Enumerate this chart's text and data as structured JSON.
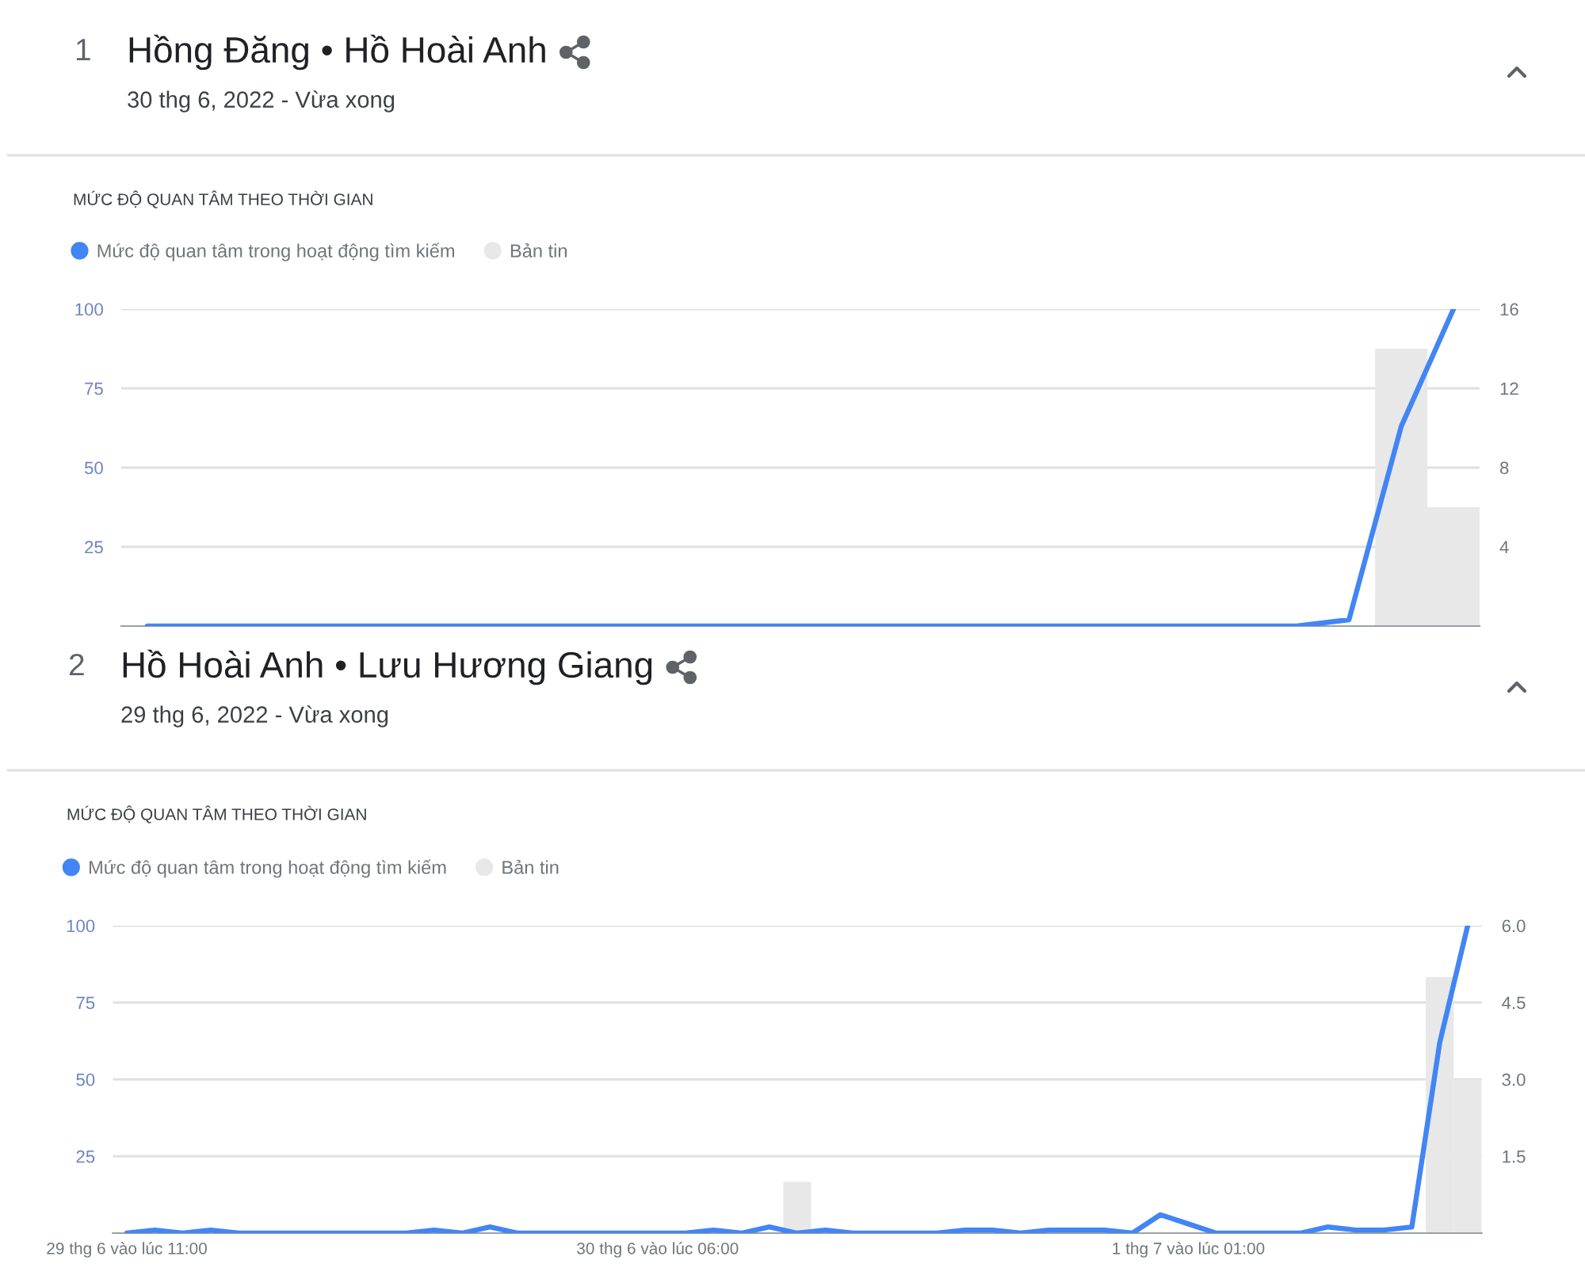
{
  "chart_data": [
    {
      "type": "line",
      "title": "Hồng Đăng • Hồ Hoài Anh",
      "subtitle": "30 thg 6, 2022 - Vừa xong",
      "annotations": [
        "1",
        "MỨC ĐỘ QUAN TÂM THEO THỜI GIAN"
      ],
      "categories": [
        null,
        null,
        null,
        null,
        null,
        null,
        null,
        null,
        null,
        null,
        null,
        null,
        null,
        null,
        null,
        null,
        null,
        null,
        null,
        null,
        null,
        null,
        null,
        null,
        null,
        null
      ],
      "series": [
        {
          "name": "Mức độ quan tâm trong hoạt động tìm kiếm",
          "color": "#4285f4",
          "values": [
            0,
            0,
            0,
            0,
            0,
            0,
            0,
            0,
            0,
            0,
            0,
            0,
            0,
            0,
            0,
            0,
            0,
            0,
            0,
            0,
            0,
            0,
            0,
            2,
            63,
            100
          ]
        },
        {
          "name": "Bản tin",
          "type": "bar",
          "axis": "y2",
          "color": "#e8e8e8",
          "values": [
            null,
            null,
            null,
            null,
            null,
            null,
            null,
            null,
            null,
            null,
            null,
            null,
            null,
            null,
            null,
            null,
            null,
            null,
            null,
            null,
            null,
            null,
            null,
            null,
            14,
            6
          ]
        }
      ],
      "ylim": [
        0,
        100
      ],
      "yticks": [
        25,
        50,
        75,
        100
      ],
      "y2lim": [
        0,
        16
      ],
      "y2ticks": [
        4,
        8,
        12,
        16
      ],
      "grid": "y",
      "legend": "top left"
    },
    {
      "type": "line",
      "title": "Hồ Hoài Anh • Lưu Hương Giang",
      "subtitle": "29 thg 6, 2022 - Vừa xong",
      "annotations": [
        "2",
        "MỨC ĐỘ QUAN TÂM THEO THỜI GIAN"
      ],
      "categories": [
        "29 thg 6 vào lúc 11:00",
        null,
        null,
        null,
        null,
        null,
        null,
        null,
        null,
        null,
        null,
        null,
        null,
        null,
        null,
        null,
        null,
        null,
        null,
        "30 thg 6 vào lúc 06:00",
        null,
        null,
        null,
        null,
        null,
        null,
        null,
        null,
        null,
        null,
        null,
        null,
        null,
        null,
        null,
        null,
        null,
        null,
        "1 thg 7 vào lúc 01:00",
        null,
        null,
        null,
        null,
        null,
        null,
        null,
        null,
        null,
        null
      ],
      "series": [
        {
          "name": "Mức độ quan tâm trong hoạt động tìm kiếm",
          "color": "#4285f4",
          "values": [
            0,
            1,
            0,
            1,
            0,
            0,
            0,
            0,
            0,
            0,
            0,
            1,
            0,
            2,
            0,
            0,
            0,
            0,
            0,
            0,
            0,
            1,
            0,
            2,
            0,
            1,
            0,
            0,
            0,
            0,
            1,
            1,
            0,
            1,
            1,
            1,
            0,
            6,
            3,
            0,
            0,
            0,
            0,
            2,
            1,
            1,
            2,
            62,
            100
          ]
        },
        {
          "name": "Bản tin",
          "type": "bar",
          "axis": "y2",
          "color": "#e8e8e8",
          "values": [
            null,
            null,
            null,
            null,
            null,
            null,
            null,
            null,
            null,
            null,
            null,
            null,
            null,
            null,
            null,
            null,
            null,
            null,
            null,
            null,
            null,
            null,
            null,
            null,
            1,
            null,
            null,
            null,
            null,
            null,
            null,
            null,
            null,
            null,
            null,
            null,
            null,
            null,
            null,
            null,
            null,
            null,
            null,
            null,
            null,
            null,
            null,
            5,
            3
          ]
        }
      ],
      "ylim": [
        0,
        100
      ],
      "yticks": [
        25,
        50,
        75,
        100
      ],
      "y2lim": [
        0,
        6
      ],
      "y2ticks": [
        {
          "value": 1.5,
          "label": "1.5"
        },
        {
          "value": 3,
          "label": "3.0"
        },
        {
          "value": 4.5,
          "label": "4.5"
        },
        {
          "value": 6,
          "label": "6.0"
        }
      ],
      "grid": "y",
      "legend": "top left"
    }
  ]
}
